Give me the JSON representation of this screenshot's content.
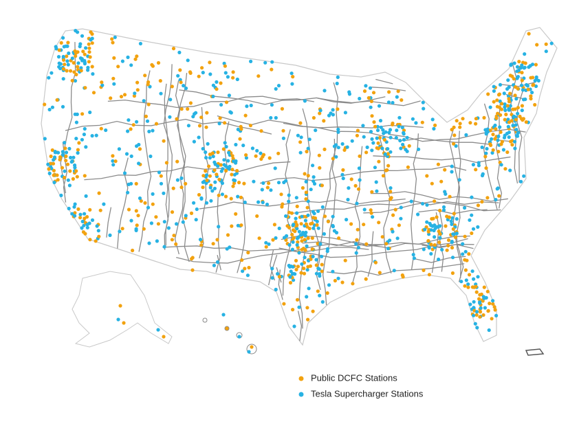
{
  "legend": [
    {
      "label": "Public DCFC Stations",
      "color": "#f2a20f"
    },
    {
      "label": "Tesla Supercharger Stations",
      "color": "#27b2e3"
    }
  ]
}
